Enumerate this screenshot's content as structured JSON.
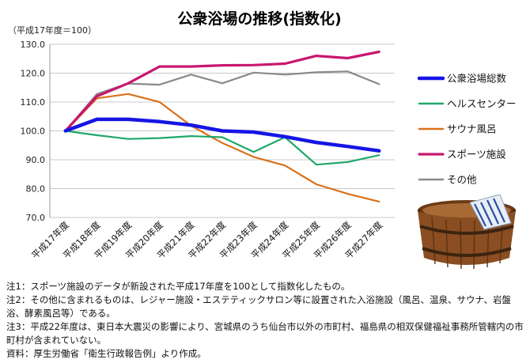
{
  "chart_data": {
    "type": "line",
    "title": "公衆浴場の推移(指数化)",
    "unit_label": "（平成17年度＝100）",
    "categories": [
      "平成17年度",
      "平成18年度",
      "平成19年度",
      "平成20年度",
      "平成21年度",
      "平成22年度",
      "平成23年度",
      "平成24年度",
      "平成25年度",
      "平成26年度",
      "平成27年度"
    ],
    "ylim": [
      70,
      130
    ],
    "yticks": [
      "70.0",
      "80.0",
      "90.0",
      "100.0",
      "110.0",
      "120.0",
      "130.0"
    ],
    "grid": true,
    "legend_position": "right",
    "series": [
      {
        "name": "公衆浴場総数",
        "color": "#1515e6",
        "width": 4.5,
        "values": [
          100,
          104,
          104,
          103.2,
          102,
          100,
          99.6,
          98,
          96,
          94.6,
          93.1
        ]
      },
      {
        "name": "ヘルスセンター",
        "color": "#1fa86a",
        "width": 2.2,
        "values": [
          100,
          98.5,
          97.2,
          97.5,
          98.2,
          97.8,
          92.7,
          97.8,
          88.3,
          89.2,
          91.6
        ]
      },
      {
        "name": "サウナ風呂",
        "color": "#d9711b",
        "width": 2.2,
        "values": [
          100,
          111.3,
          112.8,
          110,
          101.8,
          95.8,
          91,
          88,
          81.5,
          78.2,
          75.5
        ]
      },
      {
        "name": "スポーツ施設",
        "color": "#c8176e",
        "width": 3.2,
        "values": [
          100,
          112,
          116.5,
          122.3,
          122.3,
          122.7,
          122.8,
          123.3,
          126,
          125.2,
          127.4
        ]
      },
      {
        "name": "その他",
        "color": "#8a8a8a",
        "width": 2.2,
        "values": [
          100,
          112.8,
          116.4,
          116,
          119.5,
          116.5,
          120.2,
          119.5,
          120.3,
          120.6,
          116.2
        ]
      }
    ]
  },
  "notes": [
    "注1：スポーツ施設のデータが新設された平成17年度を100として指数化したもの。",
    "注2：その他に含まれるものは、レジャー施設・エステティックサロン等に設置された入浴施設（風呂、温泉、サウナ、岩盤浴、酵素風呂等）である。",
    "注3：平成22年度は、東日本大震災の影響により、宮城県のうち仙台市以外の市町村、福島県の相双保健福祉事務所管轄内の市町村が含まれていない。",
    "資料：厚生労働省「衛生行政報告例」より作成。"
  ],
  "illustration": {
    "name": "wooden-bath-tub-with-towel"
  }
}
